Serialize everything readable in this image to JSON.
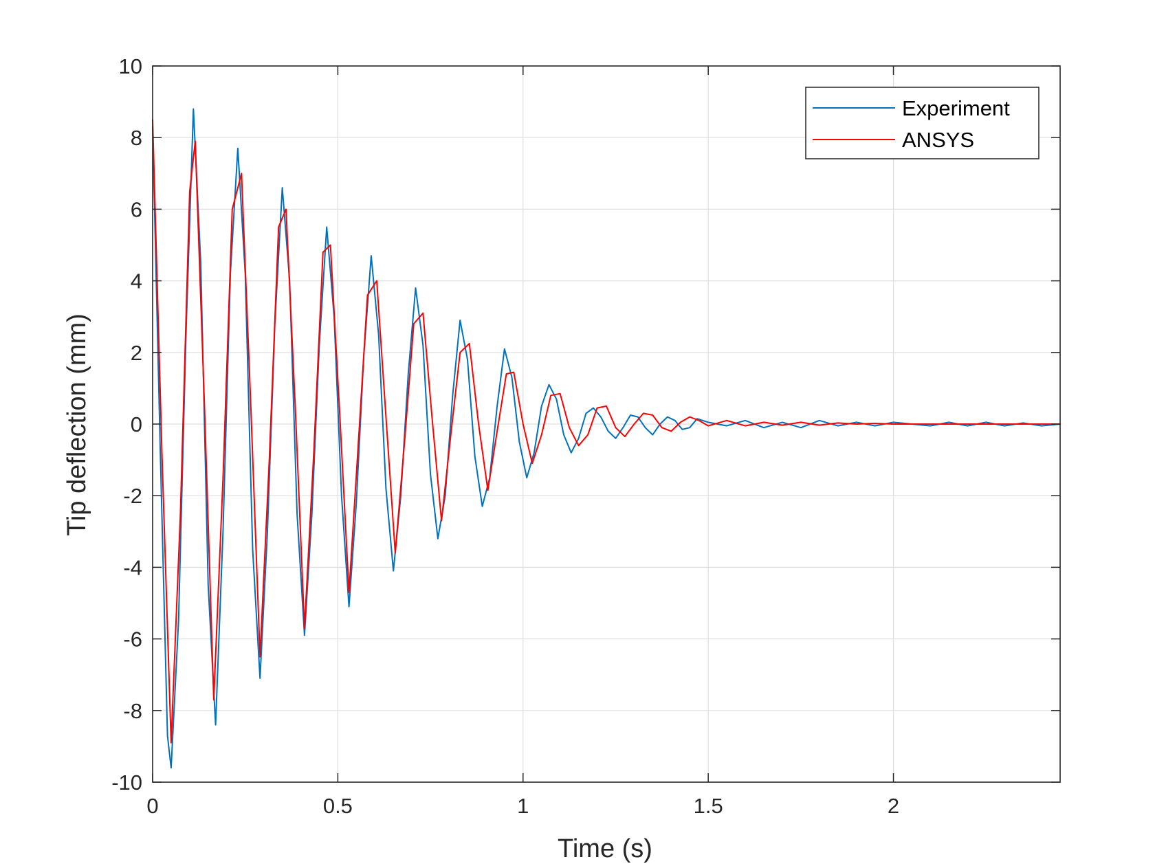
{
  "chart_data": {
    "type": "line",
    "title": "",
    "xlabel": "Time (s)",
    "ylabel": "Tip deflection (mm)",
    "xlim": [
      0,
      2.45
    ],
    "ylim": [
      -10,
      10
    ],
    "grid": true,
    "legend_position": "top-right",
    "xticks": [
      0,
      0.5,
      1,
      1.5,
      2
    ],
    "xtick_labels": [
      "0",
      "0.5",
      "1",
      "1.5",
      "2"
    ],
    "yticks": [
      -10,
      -8,
      -6,
      -4,
      -2,
      0,
      2,
      4,
      6,
      8,
      10
    ],
    "ytick_labels": [
      "-10",
      "-8",
      "-6",
      "-4",
      "-2",
      "0",
      "2",
      "4",
      "6",
      "8",
      "10"
    ],
    "colors": {
      "grid": "#dfdfdf",
      "axis": "#262626"
    },
    "series": [
      {
        "name": "Experiment",
        "color": "#0072bd",
        "x": [
          0.0,
          0.02,
          0.04,
          0.05,
          0.07,
          0.09,
          0.11,
          0.13,
          0.15,
          0.17,
          0.19,
          0.21,
          0.23,
          0.25,
          0.27,
          0.29,
          0.31,
          0.33,
          0.35,
          0.37,
          0.39,
          0.41,
          0.43,
          0.45,
          0.47,
          0.49,
          0.51,
          0.53,
          0.55,
          0.57,
          0.59,
          0.61,
          0.63,
          0.65,
          0.67,
          0.69,
          0.71,
          0.73,
          0.75,
          0.77,
          0.79,
          0.81,
          0.83,
          0.85,
          0.87,
          0.89,
          0.91,
          0.93,
          0.95,
          0.97,
          0.99,
          1.01,
          1.03,
          1.05,
          1.07,
          1.09,
          1.11,
          1.13,
          1.15,
          1.17,
          1.19,
          1.21,
          1.23,
          1.25,
          1.27,
          1.29,
          1.31,
          1.33,
          1.35,
          1.37,
          1.39,
          1.41,
          1.43,
          1.45,
          1.47,
          1.5,
          1.55,
          1.6,
          1.65,
          1.7,
          1.75,
          1.8,
          1.85,
          1.9,
          1.95,
          2.0,
          2.05,
          2.1,
          2.15,
          2.2,
          2.25,
          2.3,
          2.35,
          2.4,
          2.45
        ],
        "y": [
          8.3,
          -0.5,
          -8.7,
          -9.6,
          -5.5,
          2.5,
          8.8,
          4.5,
          -4.5,
          -8.4,
          -3.0,
          4.2,
          7.7,
          4.2,
          -3.5,
          -7.1,
          -3.0,
          2.8,
          6.6,
          4.0,
          -2.5,
          -5.9,
          -2.5,
          2.2,
          5.5,
          3.0,
          -2.0,
          -5.1,
          -2.2,
          1.9,
          4.7,
          2.5,
          -1.8,
          -4.1,
          -2.0,
          1.4,
          3.8,
          2.2,
          -1.4,
          -3.2,
          -2.0,
          0.8,
          2.9,
          1.8,
          -0.9,
          -2.3,
          -1.5,
          0.5,
          2.1,
          1.3,
          -0.5,
          -1.5,
          -0.8,
          0.5,
          1.1,
          0.7,
          -0.3,
          -0.8,
          -0.4,
          0.3,
          0.45,
          0.2,
          -0.2,
          -0.4,
          -0.1,
          0.25,
          0.2,
          -0.1,
          -0.3,
          0.0,
          0.2,
          0.1,
          -0.15,
          -0.1,
          0.15,
          0.05,
          -0.05,
          0.1,
          -0.1,
          0.05,
          -0.1,
          0.1,
          -0.05,
          0.05,
          -0.05,
          0.05,
          0.0,
          -0.05,
          0.05,
          -0.05,
          0.05,
          -0.05,
          0.03,
          -0.05,
          0.0
        ]
      },
      {
        "name": "ANSYS",
        "color": "#ff0000",
        "x": [
          0.0,
          0.025,
          0.05,
          0.075,
          0.1,
          0.115,
          0.14,
          0.165,
          0.19,
          0.215,
          0.24,
          0.265,
          0.29,
          0.315,
          0.34,
          0.36,
          0.385,
          0.41,
          0.435,
          0.46,
          0.48,
          0.505,
          0.53,
          0.555,
          0.58,
          0.605,
          0.63,
          0.655,
          0.68,
          0.705,
          0.73,
          0.755,
          0.78,
          0.805,
          0.83,
          0.855,
          0.88,
          0.905,
          0.93,
          0.955,
          0.975,
          1.0,
          1.025,
          1.05,
          1.075,
          1.1,
          1.125,
          1.15,
          1.175,
          1.2,
          1.225,
          1.25,
          1.275,
          1.3,
          1.325,
          1.35,
          1.375,
          1.4,
          1.425,
          1.45,
          1.475,
          1.5,
          1.55,
          1.6,
          1.65,
          1.7,
          1.75,
          1.8,
          1.85,
          1.9,
          1.95,
          2.0,
          2.1,
          2.2,
          2.3,
          2.45
        ],
        "y": [
          8.5,
          -0.8,
          -8.9,
          -2.5,
          6.5,
          7.9,
          0.5,
          -7.7,
          -1.5,
          6.0,
          7.0,
          0.5,
          -6.5,
          -1.0,
          5.5,
          6.0,
          0.5,
          -5.7,
          -0.8,
          4.8,
          5.0,
          0.3,
          -4.7,
          -0.6,
          3.6,
          4.0,
          0.2,
          -3.6,
          -0.5,
          2.8,
          3.1,
          0.1,
          -2.7,
          -0.3,
          2.0,
          2.25,
          0.0,
          -1.85,
          -0.2,
          1.4,
          1.45,
          0.0,
          -1.1,
          -0.3,
          0.8,
          0.85,
          -0.1,
          -0.6,
          -0.3,
          0.45,
          0.5,
          -0.1,
          -0.35,
          0.0,
          0.3,
          0.25,
          -0.1,
          -0.2,
          0.05,
          0.2,
          0.1,
          -0.05,
          0.1,
          -0.05,
          0.05,
          -0.03,
          0.05,
          -0.03,
          0.03,
          0.0,
          0.02,
          0.0,
          0.0,
          0.0,
          0.0,
          0.0
        ]
      }
    ]
  }
}
